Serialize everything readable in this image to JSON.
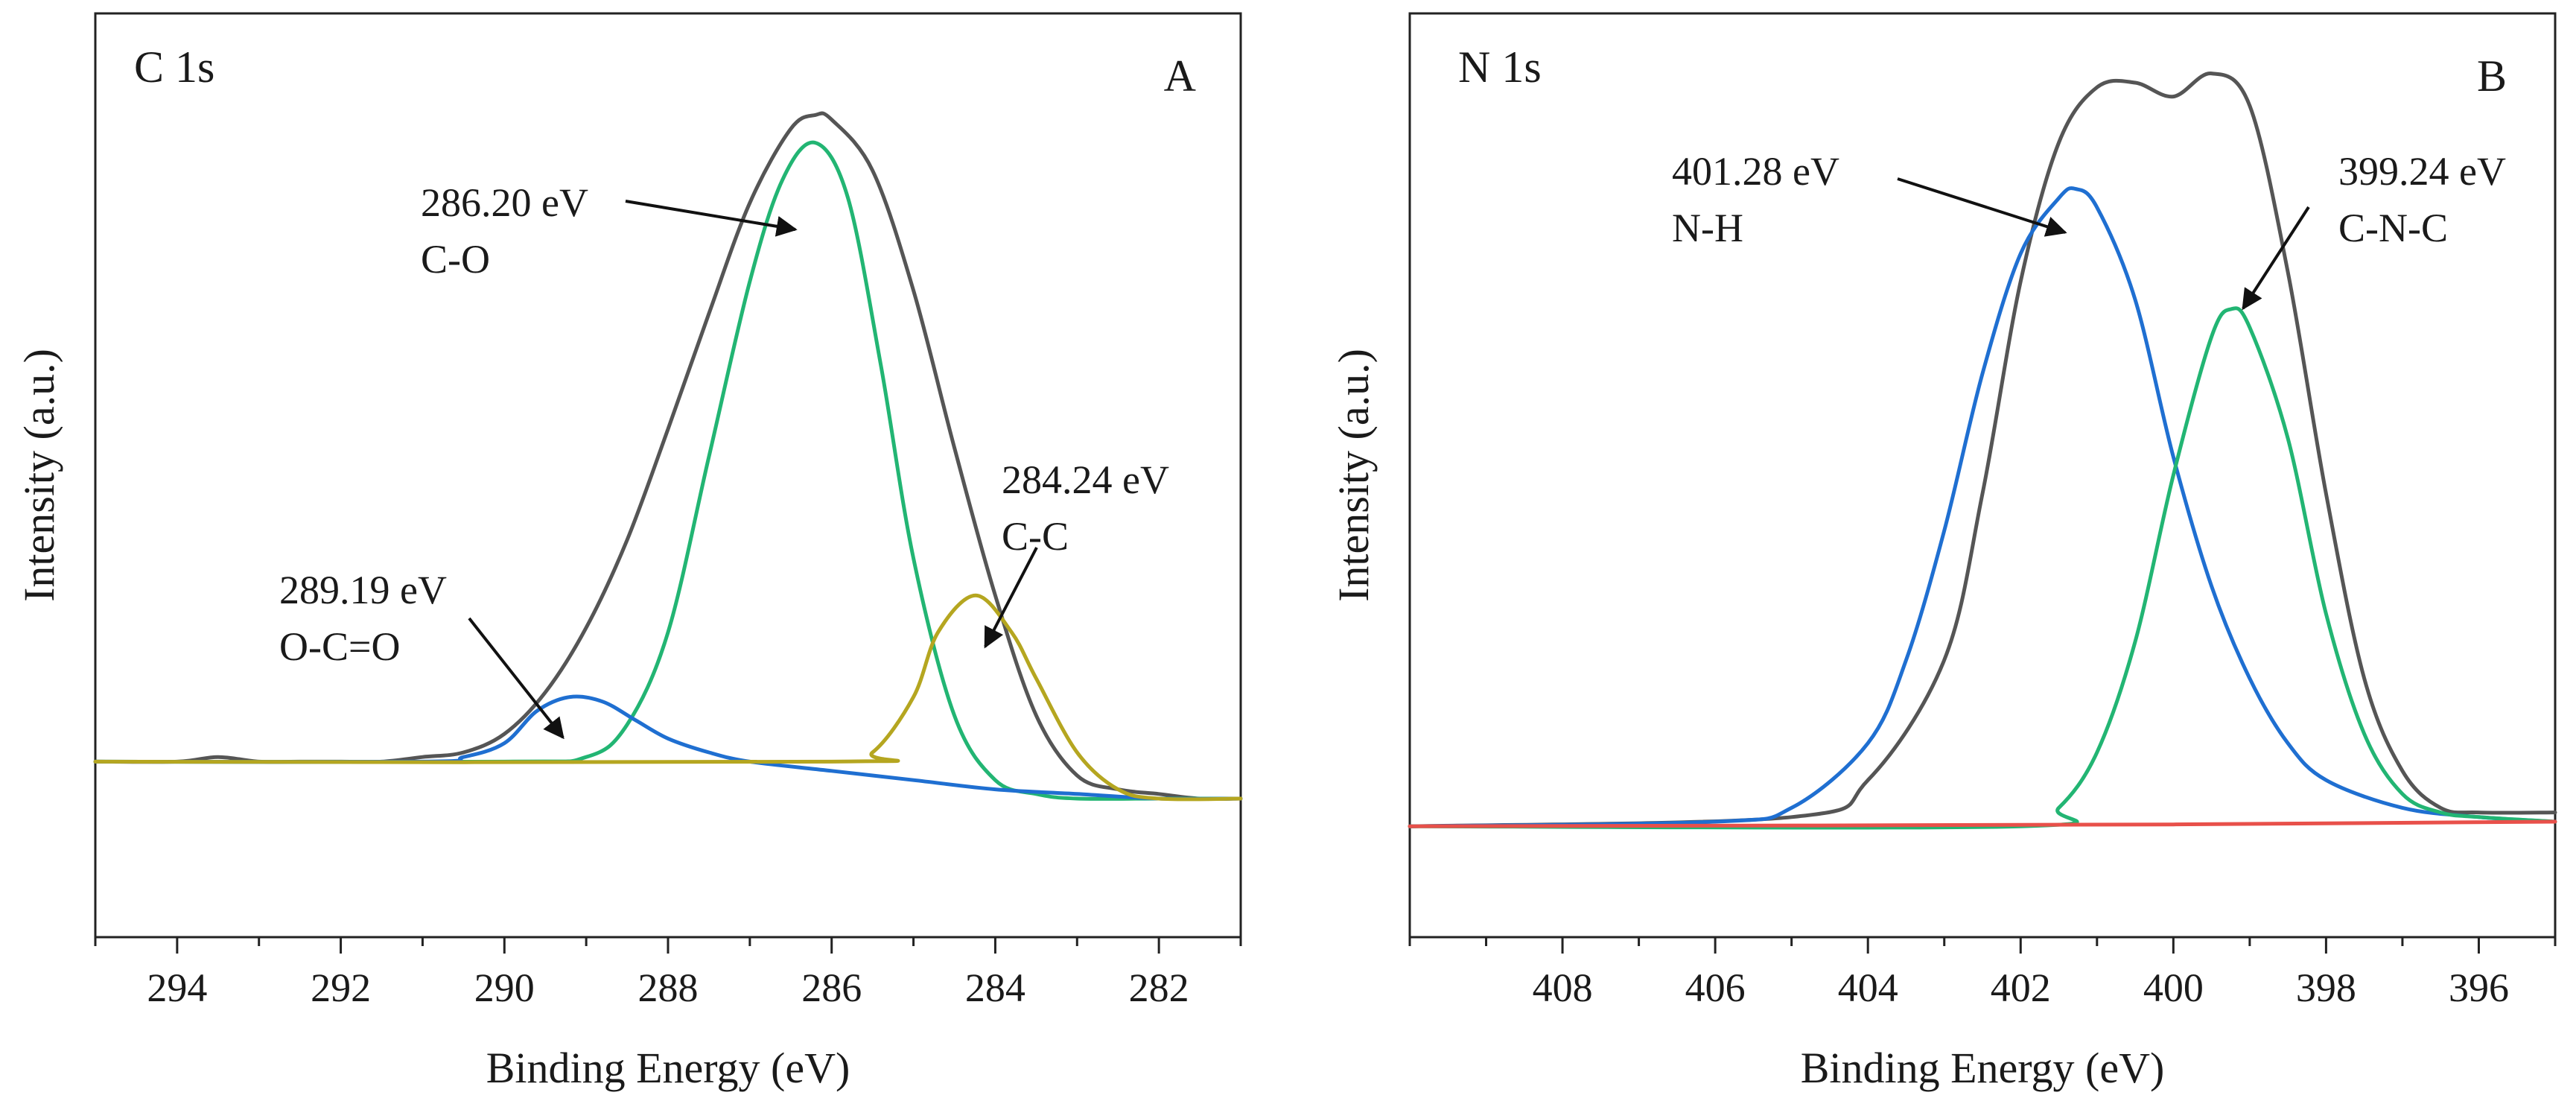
{
  "chart_data": [
    {
      "type": "line",
      "panel_title": "C 1s",
      "panel_letter": "A",
      "xlabel": "Binding Energy (eV)",
      "ylabel": "Intensity (a.u.)",
      "x_reversed": true,
      "xlim": [
        295,
        281
      ],
      "xticks": [
        294,
        292,
        290,
        288,
        286,
        284,
        282
      ],
      "ylim": [
        0,
        1.0
      ],
      "grid": false,
      "series": [
        {
          "color": "#555555",
          "x": [
            295,
            294,
            293.5,
            293,
            292.5,
            292,
            291.5,
            291,
            290.5,
            290,
            289.5,
            289,
            288.5,
            288,
            287.5,
            287,
            286.5,
            286.2,
            286,
            285.5,
            285,
            284.5,
            284,
            283.5,
            283,
            282.5,
            282,
            281.5,
            281
          ],
          "values": [
            0.19,
            0.19,
            0.195,
            0.19,
            0.19,
            0.19,
            0.19,
            0.195,
            0.2,
            0.22,
            0.265,
            0.335,
            0.43,
            0.55,
            0.675,
            0.795,
            0.875,
            0.89,
            0.885,
            0.83,
            0.7,
            0.53,
            0.37,
            0.24,
            0.175,
            0.16,
            0.155,
            0.15,
            0.15
          ]
        },
        {
          "color": "#22b573",
          "x": [
            295,
            290,
            289,
            288.5,
            288,
            287.5,
            287,
            286.6,
            286.2,
            285.8,
            285.4,
            285,
            284.5,
            284,
            283.5,
            283,
            282,
            281
          ],
          "values": [
            0.19,
            0.19,
            0.195,
            0.23,
            0.33,
            0.52,
            0.71,
            0.82,
            0.86,
            0.8,
            0.62,
            0.41,
            0.24,
            0.17,
            0.155,
            0.15,
            0.15,
            0.15
          ]
        },
        {
          "color": "#1f6fd1",
          "x": [
            295,
            291,
            290.5,
            290,
            289.6,
            289.2,
            288.8,
            288.4,
            288,
            287.5,
            287,
            286,
            285,
            284,
            283,
            282,
            281
          ],
          "values": [
            0.19,
            0.19,
            0.195,
            0.21,
            0.245,
            0.26,
            0.255,
            0.235,
            0.215,
            0.2,
            0.19,
            0.18,
            0.17,
            0.16,
            0.155,
            0.15,
            0.15
          ]
        },
        {
          "color": "#b5a620",
          "x": [
            295,
            286,
            285.5,
            285,
            284.7,
            284.24,
            283.8,
            283.5,
            283,
            282.5,
            282,
            281
          ],
          "values": [
            0.19,
            0.19,
            0.2,
            0.26,
            0.33,
            0.37,
            0.33,
            0.28,
            0.2,
            0.16,
            0.15,
            0.15
          ]
        }
      ],
      "annotations": [
        {
          "lines": [
            "286.20 eV",
            "C-O"
          ],
          "x": 286.2,
          "y": 0.86
        },
        {
          "lines": [
            "284.24 eV",
            "C-C"
          ],
          "x": 284.24,
          "y": 0.37
        },
        {
          "lines": [
            "289.19 eV",
            "O-C=O"
          ],
          "x": 289.19,
          "y": 0.26
        }
      ]
    },
    {
      "type": "line",
      "panel_title": "N 1s",
      "panel_letter": "B",
      "xlabel": "Binding Energy (eV)",
      "ylabel": "Intensity (a.u.)",
      "x_reversed": true,
      "xlim": [
        410,
        395
      ],
      "xticks": [
        408,
        406,
        404,
        402,
        400,
        398,
        396
      ],
      "ylim": [
        0,
        1.0
      ],
      "grid": false,
      "series": [
        {
          "color": "#555555",
          "x": [
            410,
            405,
            404,
            403,
            402.5,
            402,
            401.5,
            401,
            400.5,
            400,
            399.5,
            399,
            398.5,
            398,
            397.5,
            397,
            396.5,
            396,
            395
          ],
          "values": [
            0.12,
            0.13,
            0.17,
            0.3,
            0.48,
            0.71,
            0.86,
            0.92,
            0.925,
            0.91,
            0.935,
            0.9,
            0.72,
            0.48,
            0.28,
            0.18,
            0.14,
            0.135,
            0.135
          ]
        },
        {
          "color": "#1f6fd1",
          "x": [
            410,
            406,
            405,
            404,
            403.5,
            403,
            402.5,
            402,
            401.5,
            401.28,
            401,
            400.5,
            400,
            399.5,
            399,
            398.5,
            398,
            397,
            396,
            395
          ],
          "values": [
            0.12,
            0.125,
            0.14,
            0.21,
            0.3,
            0.44,
            0.61,
            0.74,
            0.8,
            0.81,
            0.79,
            0.69,
            0.52,
            0.38,
            0.28,
            0.21,
            0.17,
            0.14,
            0.13,
            0.125
          ]
        },
        {
          "color": "#22b573",
          "x": [
            410,
            402,
            401.5,
            401,
            400.5,
            400,
            399.5,
            399.24,
            399,
            398.5,
            398,
            397.5,
            397,
            396.5,
            396,
            395
          ],
          "values": [
            0.12,
            0.12,
            0.14,
            0.2,
            0.32,
            0.5,
            0.65,
            0.68,
            0.66,
            0.54,
            0.35,
            0.22,
            0.155,
            0.135,
            0.13,
            0.125
          ]
        },
        {
          "color": "#e8504a",
          "x": [
            410,
            400,
            395
          ],
          "values": [
            0.12,
            0.122,
            0.125
          ]
        }
      ],
      "annotations": [
        {
          "lines": [
            "401.28 eV",
            "N-H"
          ],
          "x": 401.28,
          "y": 0.81
        },
        {
          "lines": [
            "399.24 eV",
            "C-N-C"
          ],
          "x": 399.24,
          "y": 0.68
        }
      ]
    }
  ]
}
